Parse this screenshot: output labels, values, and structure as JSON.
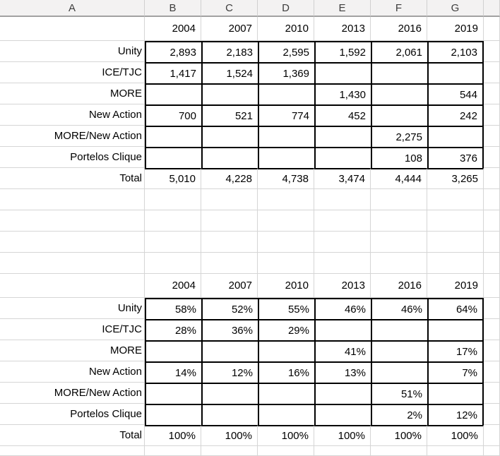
{
  "sheet": {
    "column_headers": [
      "A",
      "B",
      "C",
      "D",
      "E",
      "F",
      "G",
      ""
    ],
    "years": [
      "2004",
      "2007",
      "2010",
      "2013",
      "2016",
      "2019"
    ],
    "counts_table": {
      "rows": [
        {
          "label": "Unity",
          "values": [
            "2,893",
            "2,183",
            "2,595",
            "1,592",
            "2,061",
            "2,103"
          ]
        },
        {
          "label": "ICE/TJC",
          "values": [
            "1,417",
            "1,524",
            "1,369",
            "",
            "",
            ""
          ]
        },
        {
          "label": "MORE",
          "values": [
            "",
            "",
            "",
            "1,430",
            "",
            "544"
          ]
        },
        {
          "label": "New Action",
          "values": [
            "700",
            "521",
            "774",
            "452",
            "",
            "242"
          ]
        },
        {
          "label": "MORE/New Action",
          "values": [
            "",
            "",
            "",
            "",
            "2,275",
            ""
          ]
        },
        {
          "label": "Portelos Clique",
          "values": [
            "",
            "",
            "",
            "",
            "108",
            "376"
          ]
        }
      ],
      "total_row": {
        "label": "Total",
        "values": [
          "5,010",
          "4,228",
          "4,738",
          "3,474",
          "4,444",
          "3,265"
        ],
        "has_flags": true
      }
    },
    "percent_table": {
      "rows": [
        {
          "label": "Unity",
          "values": [
            "58%",
            "52%",
            "55%",
            "46%",
            "46%",
            "64%"
          ]
        },
        {
          "label": "ICE/TJC",
          "values": [
            "28%",
            "36%",
            "29%",
            "",
            "",
            ""
          ]
        },
        {
          "label": "MORE",
          "values": [
            "",
            "",
            "",
            "41%",
            "",
            "17%"
          ]
        },
        {
          "label": "New Action",
          "values": [
            "14%",
            "12%",
            "16%",
            "13%",
            "",
            "7%"
          ]
        },
        {
          "label": "MORE/New Action",
          "values": [
            "",
            "",
            "",
            "",
            "51%",
            ""
          ]
        },
        {
          "label": "Portelos Clique",
          "values": [
            "",
            "",
            "",
            "",
            "2%",
            "12%"
          ]
        }
      ],
      "total_row": {
        "label": "Total",
        "values": [
          "100%",
          "100%",
          "100%",
          "100%",
          "100%",
          "100%"
        ],
        "has_flags": false
      }
    }
  },
  "colors": {
    "error_flag_green": "#2f7d33",
    "grid_line": "#d5d5d5",
    "header_background": "#f3f2f2",
    "header_border": "#a2a2a2",
    "table_border": "#000000"
  }
}
